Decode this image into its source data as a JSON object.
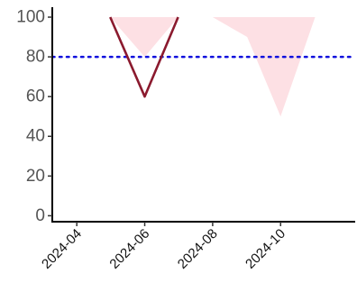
{
  "chart_data": {
    "type": "line",
    "title": "",
    "xlabel": "",
    "ylabel": "",
    "x_axis_type": "date",
    "xlim": [
      "2024-03-10",
      "2024-12-07"
    ],
    "ylim": [
      -3,
      105
    ],
    "yticks": [
      0,
      20,
      40,
      60,
      80,
      100
    ],
    "yticklabels": [
      "0",
      "20",
      "40",
      "60",
      "80",
      "100"
    ],
    "xticks": [
      "2024-04-01",
      "2024-06-01",
      "2024-08-01",
      "2024-10-01"
    ],
    "xticklabels": [
      "2024-04",
      "2024-06",
      "2024-08",
      "2024-10"
    ],
    "grid": false,
    "legend": "none",
    "series": [
      {
        "kind": "line",
        "color": "#8b1a2e",
        "x": [
          "2024-05-01",
          "2024-06-01",
          "2024-07-01"
        ],
        "y": [
          100,
          60,
          100
        ]
      },
      {
        "kind": "area",
        "color": "#fde0e4",
        "x": [
          "2024-05-01",
          "2024-06-01",
          "2024-07-01"
        ],
        "y_upper": [
          100,
          100,
          100
        ],
        "y_lower": [
          100,
          80,
          100
        ]
      },
      {
        "kind": "area",
        "color": "#fde0e4",
        "x": [
          "2024-08-01",
          "2024-09-01",
          "2024-10-01",
          "2024-11-01"
        ],
        "y_upper": [
          100,
          100,
          100,
          100
        ],
        "y_lower": [
          100,
          90,
          50,
          100
        ]
      }
    ],
    "reference_line": {
      "axis": "y",
      "value": 80,
      "style": "dotted",
      "color": "#1010dd"
    }
  }
}
